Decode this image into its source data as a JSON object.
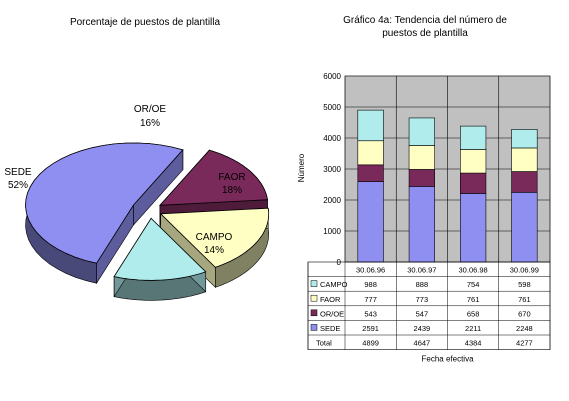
{
  "chart_data": [
    {
      "type": "pie",
      "title": "Porcentaje de puestos de plantilla",
      "labels": [
        "SEDE",
        "OR/OE",
        "FAOR",
        "CAMPO"
      ],
      "values": [
        52,
        16,
        18,
        14
      ],
      "percent_labels": [
        "52%",
        "16%",
        "18%",
        "14%"
      ],
      "colors": {
        "SEDE": "#8f8ff2",
        "OR/OE": "#7a2a5a",
        "FAOR": "#ffffc4",
        "CAMPO": "#b0ecec"
      },
      "style": "exploded-3d"
    },
    {
      "type": "bar",
      "stacked": true,
      "title": "Gráfico 4a: Tendencia del número de\npuestos de plantilla",
      "xlabel": "Fecha efectiva",
      "ylabel": "Número",
      "ylim": [
        0,
        6000
      ],
      "yticks": [
        0,
        1000,
        2000,
        3000,
        4000,
        5000,
        6000
      ],
      "grid": true,
      "categories": [
        "30.06.96",
        "30.06.97",
        "30.06.98",
        "30.06.99"
      ],
      "series": [
        {
          "name": "SEDE",
          "color": "#8f8ff2",
          "values": [
            2591,
            2439,
            2211,
            2248
          ]
        },
        {
          "name": "OR/OE",
          "color": "#7a2a5a",
          "values": [
            543,
            547,
            658,
            670
          ]
        },
        {
          "name": "FAOR",
          "color": "#ffffc4",
          "values": [
            777,
            773,
            761,
            761
          ]
        },
        {
          "name": "CAMPO",
          "color": "#b0ecec",
          "values": [
            988,
            888,
            754,
            598
          ]
        }
      ],
      "table": {
        "row_order": [
          "CAMPO",
          "FAOR",
          "OR/OE",
          "SEDE"
        ],
        "total_label": "Total",
        "totals": [
          4899,
          4647,
          4384,
          4277
        ]
      }
    }
  ]
}
